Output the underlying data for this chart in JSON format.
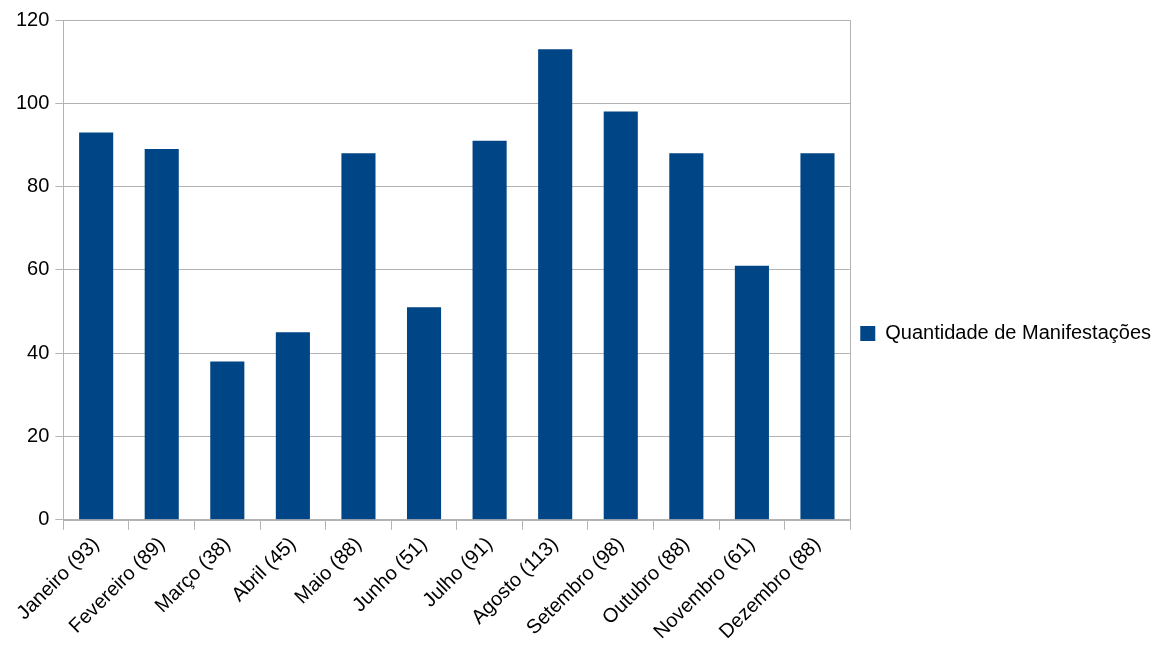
{
  "chart_data": {
    "type": "bar",
    "categories": [
      "Janeiro (93)",
      "Fevereiro (89)",
      "Março (38)",
      "Abril (45)",
      "Maio (88)",
      "Junho (51)",
      "Julho (91)",
      "Agosto (113)",
      "Setembro (98)",
      "Outubro (88)",
      "Novembro (61)",
      "Dezembro (88)"
    ],
    "series": [
      {
        "name": "Quantidade de Manifestações",
        "color": "#004586",
        "values": [
          93,
          89,
          38,
          45,
          88,
          51,
          91,
          113,
          98,
          88,
          61,
          88
        ]
      }
    ],
    "ylim": [
      0,
      120
    ],
    "yticks": [
      0,
      20,
      40,
      60,
      80,
      100,
      120
    ],
    "grid": "y",
    "legend": "right"
  }
}
